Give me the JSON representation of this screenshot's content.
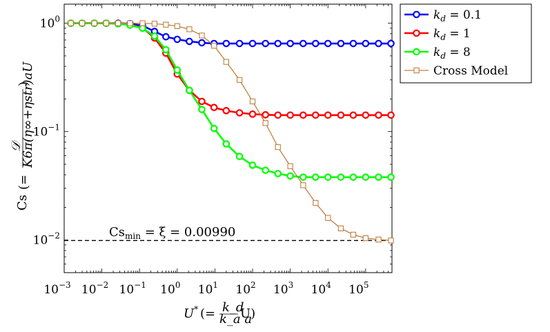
{
  "chart_data": {
    "type": "line",
    "title": "",
    "xscale": "log",
    "yscale": "log",
    "xlim": [
      0.001,
      500000
    ],
    "ylim": [
      0.005,
      1.5
    ],
    "x_tick_labels": [
      "10",
      "10",
      "10",
      "10",
      "10",
      "10",
      "10",
      "10",
      "10"
    ],
    "x_tick_exponents": [
      "−3",
      "−2",
      "−1",
      "0",
      "1",
      "2",
      "3",
      "4",
      "5"
    ],
    "x_tick_values": [
      0.001,
      0.01,
      0.1,
      1,
      10,
      100,
      1000,
      10000,
      100000
    ],
    "y_tick_labels": [
      "10",
      "10",
      "10"
    ],
    "y_tick_exponents": [
      "−2",
      "−1",
      "0"
    ],
    "y_tick_values": [
      0.01,
      0.1,
      1
    ],
    "xlabel": {
      "main": "U",
      "sup": "*",
      "open": "(=",
      "frac_num": "k_d",
      "frac_den": "k_a a",
      "tail": "U)"
    },
    "ylabel": {
      "main": "Cs",
      "open": "(=",
      "frac_num": "𝒟",
      "frac_den": "K6π(η∞+ηstr)aU",
      "close": ")"
    },
    "annotation": {
      "text": "Cs",
      "sub": "min",
      "rest": " = ξ = 0.00990",
      "y": 0.0099
    },
    "legend_position": "outside-top-right",
    "legend": [
      {
        "label": "k",
        "sub": "d",
        "value": " = 0.1"
      },
      {
        "label": "k",
        "sub": "d",
        "value": " = 1"
      },
      {
        "label": "k",
        "sub": "d",
        "value": " = 8"
      },
      {
        "label": "Cross Model",
        "sub": "",
        "value": ""
      }
    ],
    "series": [
      {
        "color": "#0000ff",
        "marker": "circle",
        "points": [
          [
            0.0015,
            1.0
          ],
          [
            0.003,
            1.0
          ],
          [
            0.0063,
            1.0
          ],
          [
            0.013,
            1.0
          ],
          [
            0.027,
            1.0
          ],
          [
            0.056,
            0.99
          ],
          [
            0.12,
            0.95
          ],
          [
            0.25,
            0.84
          ],
          [
            0.5,
            0.75
          ],
          [
            1.0,
            0.71
          ],
          [
            2.1,
            0.68
          ],
          [
            4.5,
            0.66
          ],
          [
            9.5,
            0.65
          ],
          [
            20,
            0.65
          ],
          [
            45,
            0.65
          ],
          [
            100,
            0.65
          ],
          [
            220,
            0.65
          ],
          [
            470,
            0.65
          ],
          [
            1000,
            0.65
          ],
          [
            2200,
            0.65
          ],
          [
            4700,
            0.65
          ],
          [
            10000,
            0.65
          ],
          [
            22000,
            0.65
          ],
          [
            47000,
            0.65
          ],
          [
            100000,
            0.65
          ],
          [
            220000,
            0.65
          ],
          [
            470000,
            0.65
          ]
        ]
      },
      {
        "color": "#ff0000",
        "marker": "circle",
        "points": [
          [
            0.0015,
            1.0
          ],
          [
            0.003,
            1.0
          ],
          [
            0.0063,
            1.0
          ],
          [
            0.013,
            1.0
          ],
          [
            0.027,
            0.99
          ],
          [
            0.056,
            0.97
          ],
          [
            0.12,
            0.91
          ],
          [
            0.25,
            0.73
          ],
          [
            0.5,
            0.53
          ],
          [
            1.0,
            0.34
          ],
          [
            2.1,
            0.24
          ],
          [
            4.5,
            0.19
          ],
          [
            9.5,
            0.167
          ],
          [
            20,
            0.156
          ],
          [
            45,
            0.149
          ],
          [
            100,
            0.145
          ],
          [
            220,
            0.143
          ],
          [
            470,
            0.142
          ],
          [
            1000,
            0.142
          ],
          [
            2200,
            0.142
          ],
          [
            4700,
            0.142
          ],
          [
            10000,
            0.142
          ],
          [
            22000,
            0.142
          ],
          [
            47000,
            0.142
          ],
          [
            100000,
            0.142
          ],
          [
            220000,
            0.142
          ],
          [
            470000,
            0.142
          ]
        ]
      },
      {
        "color": "#00ff00",
        "marker": "circle",
        "points": [
          [
            0.0015,
            1.0
          ],
          [
            0.003,
            1.0
          ],
          [
            0.0063,
            1.0
          ],
          [
            0.013,
            1.0
          ],
          [
            0.027,
            0.99
          ],
          [
            0.056,
            0.96
          ],
          [
            0.12,
            0.9
          ],
          [
            0.25,
            0.76
          ],
          [
            0.5,
            0.57
          ],
          [
            1.0,
            0.37
          ],
          [
            2.1,
            0.24
          ],
          [
            4.5,
            0.16
          ],
          [
            9.5,
            0.107
          ],
          [
            20,
            0.077
          ],
          [
            45,
            0.059
          ],
          [
            100,
            0.049
          ],
          [
            220,
            0.044
          ],
          [
            470,
            0.041
          ],
          [
            1000,
            0.039
          ],
          [
            2200,
            0.038
          ],
          [
            4700,
            0.038
          ],
          [
            10000,
            0.038
          ],
          [
            22000,
            0.038
          ],
          [
            47000,
            0.038
          ],
          [
            100000,
            0.038
          ],
          [
            220000,
            0.038
          ],
          [
            470000,
            0.038
          ]
        ]
      },
      {
        "color": "#bf8040",
        "marker": "square",
        "points": [
          [
            0.0015,
            1.0
          ],
          [
            0.003,
            1.0
          ],
          [
            0.0063,
            1.0
          ],
          [
            0.013,
            1.0
          ],
          [
            0.027,
            1.0
          ],
          [
            0.056,
            1.0
          ],
          [
            0.12,
            1.0
          ],
          [
            0.25,
            0.99
          ],
          [
            0.5,
            0.97
          ],
          [
            1.0,
            0.94
          ],
          [
            2.1,
            0.88
          ],
          [
            4.5,
            0.77
          ],
          [
            9.5,
            0.62
          ],
          [
            20,
            0.44
          ],
          [
            45,
            0.3
          ],
          [
            100,
            0.19
          ],
          [
            220,
            0.12
          ],
          [
            470,
            0.072
          ],
          [
            1000,
            0.048
          ],
          [
            2200,
            0.032
          ],
          [
            4700,
            0.022
          ],
          [
            10000,
            0.016
          ],
          [
            22000,
            0.0128
          ],
          [
            47000,
            0.0112
          ],
          [
            100000,
            0.0104
          ],
          [
            220000,
            0.0101
          ],
          [
            470000,
            0.0099
          ]
        ]
      }
    ]
  }
}
